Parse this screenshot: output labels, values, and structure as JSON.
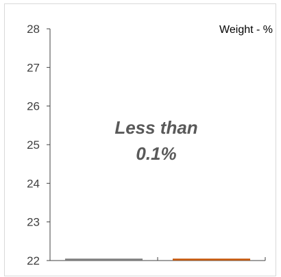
{
  "chart_data": {
    "type": "bar",
    "title": "",
    "xlabel": "",
    "ylabel": "",
    "legend_text": "Weight - %",
    "legend_position": "top-right",
    "annotation_lines": [
      "Less than",
      "0.1%"
    ],
    "categories": [
      "",
      ""
    ],
    "values": [
      22.05,
      22.05
    ],
    "ylim": [
      22,
      28
    ],
    "yticks": [
      22,
      23,
      24,
      25,
      26,
      27,
      28
    ],
    "grid": false,
    "colors": {
      "bar_1": "#7f7f7f",
      "bar_2": "#c55a11",
      "axis": "#404040",
      "tick_label": "#404040",
      "annotation": "#595959",
      "border": "#d9d9d9"
    }
  }
}
